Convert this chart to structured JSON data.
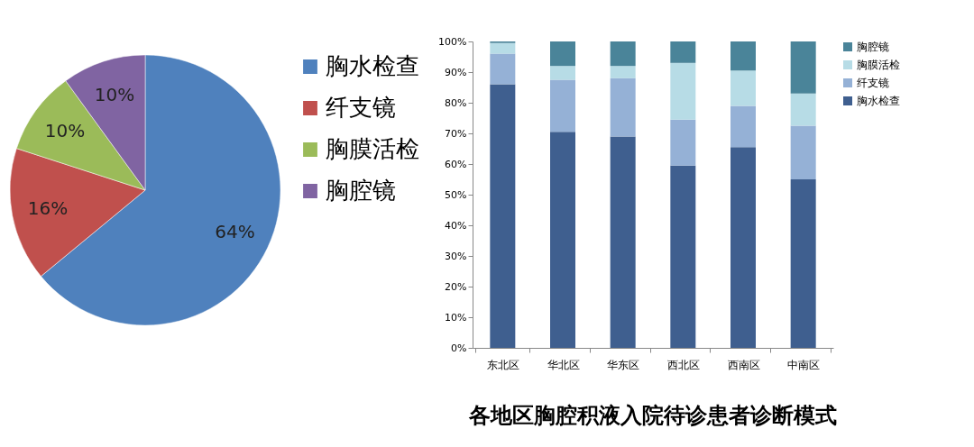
{
  "chart_data": [
    {
      "type": "pie",
      "categories": [
        "胸水检查",
        "纤支镜",
        "胸膜活检",
        "胸腔镜"
      ],
      "values": [
        64,
        16,
        10,
        10
      ],
      "colors": [
        "#4f81bd",
        "#c0504d",
        "#9bbb59",
        "#8064a2"
      ],
      "value_labels": [
        "64%",
        "16%",
        "10%",
        "10%"
      ],
      "legend": "right"
    },
    {
      "type": "bar",
      "title": "各地区胸腔积液入院待诊患者诊断模式",
      "categories": [
        "东北区",
        "华北区",
        "华东区",
        "西北区",
        "西南区",
        "中南区"
      ],
      "stacked": true,
      "legend": "right",
      "ylim": [
        0,
        100
      ],
      "yticks": [
        {
          "value": 0,
          "label": "0%"
        },
        {
          "value": 10,
          "label": "10%"
        },
        {
          "value": 20,
          "label": "20%"
        },
        {
          "value": 30,
          "label": "30%"
        },
        {
          "value": 40,
          "label": "40%"
        },
        {
          "value": 50,
          "label": "50%"
        },
        {
          "value": 60,
          "label": "60%"
        },
        {
          "value": 70,
          "label": "70%"
        },
        {
          "value": 80,
          "label": "80%"
        },
        {
          "value": 90,
          "label": "90%"
        },
        {
          "value": 100,
          "label": "100%"
        }
      ],
      "series": [
        {
          "name": "胸水检查",
          "color": "#3f5f8f",
          "values": [
            86,
            70.5,
            69,
            59.5,
            65.5,
            55
          ]
        },
        {
          "name": "纤支镜",
          "color": "#95b1d6",
          "values": [
            10,
            17,
            19,
            15,
            13.5,
            17.5
          ]
        },
        {
          "name": "胸膜活检",
          "color": "#b7dce6",
          "values": [
            3.5,
            4.5,
            4,
            18.5,
            11.5,
            10.5
          ]
        },
        {
          "name": "胸腔镜",
          "color": "#4a8499",
          "values": [
            0.5,
            8,
            8,
            7,
            9.5,
            17
          ]
        }
      ]
    }
  ]
}
